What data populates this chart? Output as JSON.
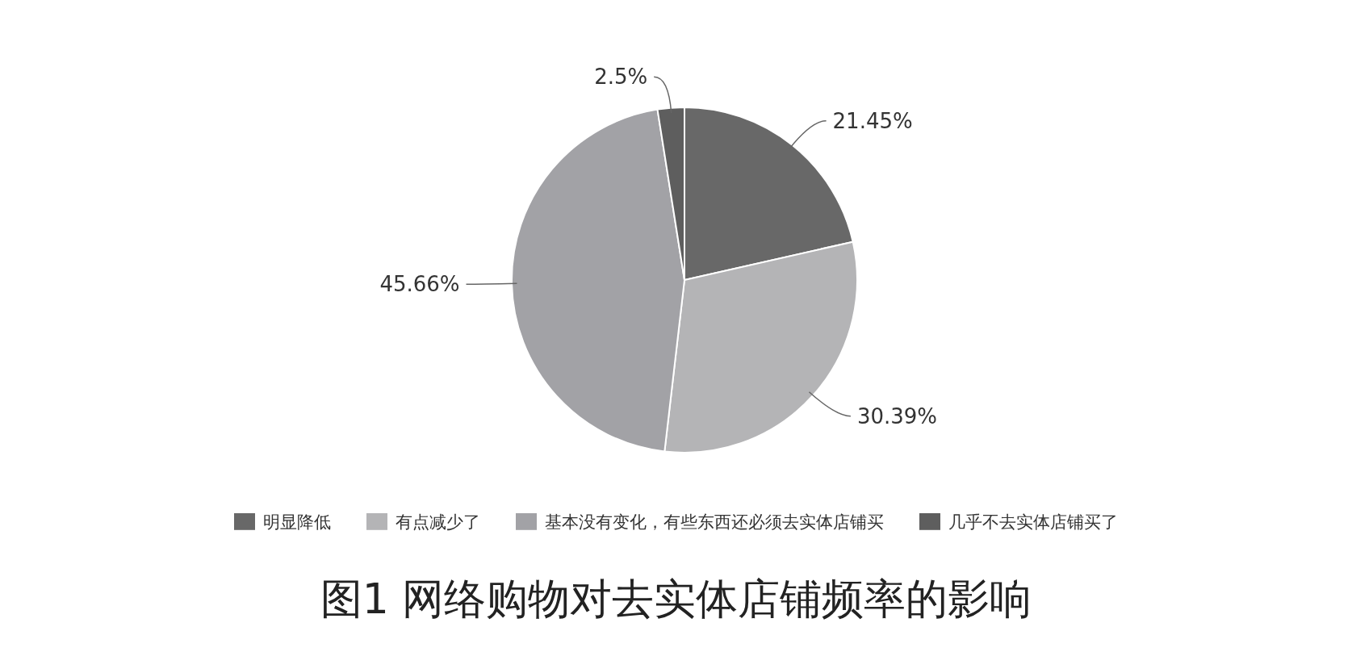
{
  "chart_data": {
    "type": "pie",
    "title": "图1  网络购物对去实体店铺频率的影响",
    "categories": [
      "明显降低",
      "有点减少了",
      "基本没有变化，有些东西还必须去实体店铺买",
      "几乎不去实体店铺买了"
    ],
    "values": [
      21.45,
      30.39,
      45.66,
      2.5
    ],
    "value_labels": [
      "21.45%",
      "30.39%",
      "45.66%",
      "2.5%"
    ],
    "colors": [
      "#686868",
      "#b4b4b6",
      "#a2a2a6",
      "#5e5e5e"
    ],
    "legend": "bottom"
  }
}
